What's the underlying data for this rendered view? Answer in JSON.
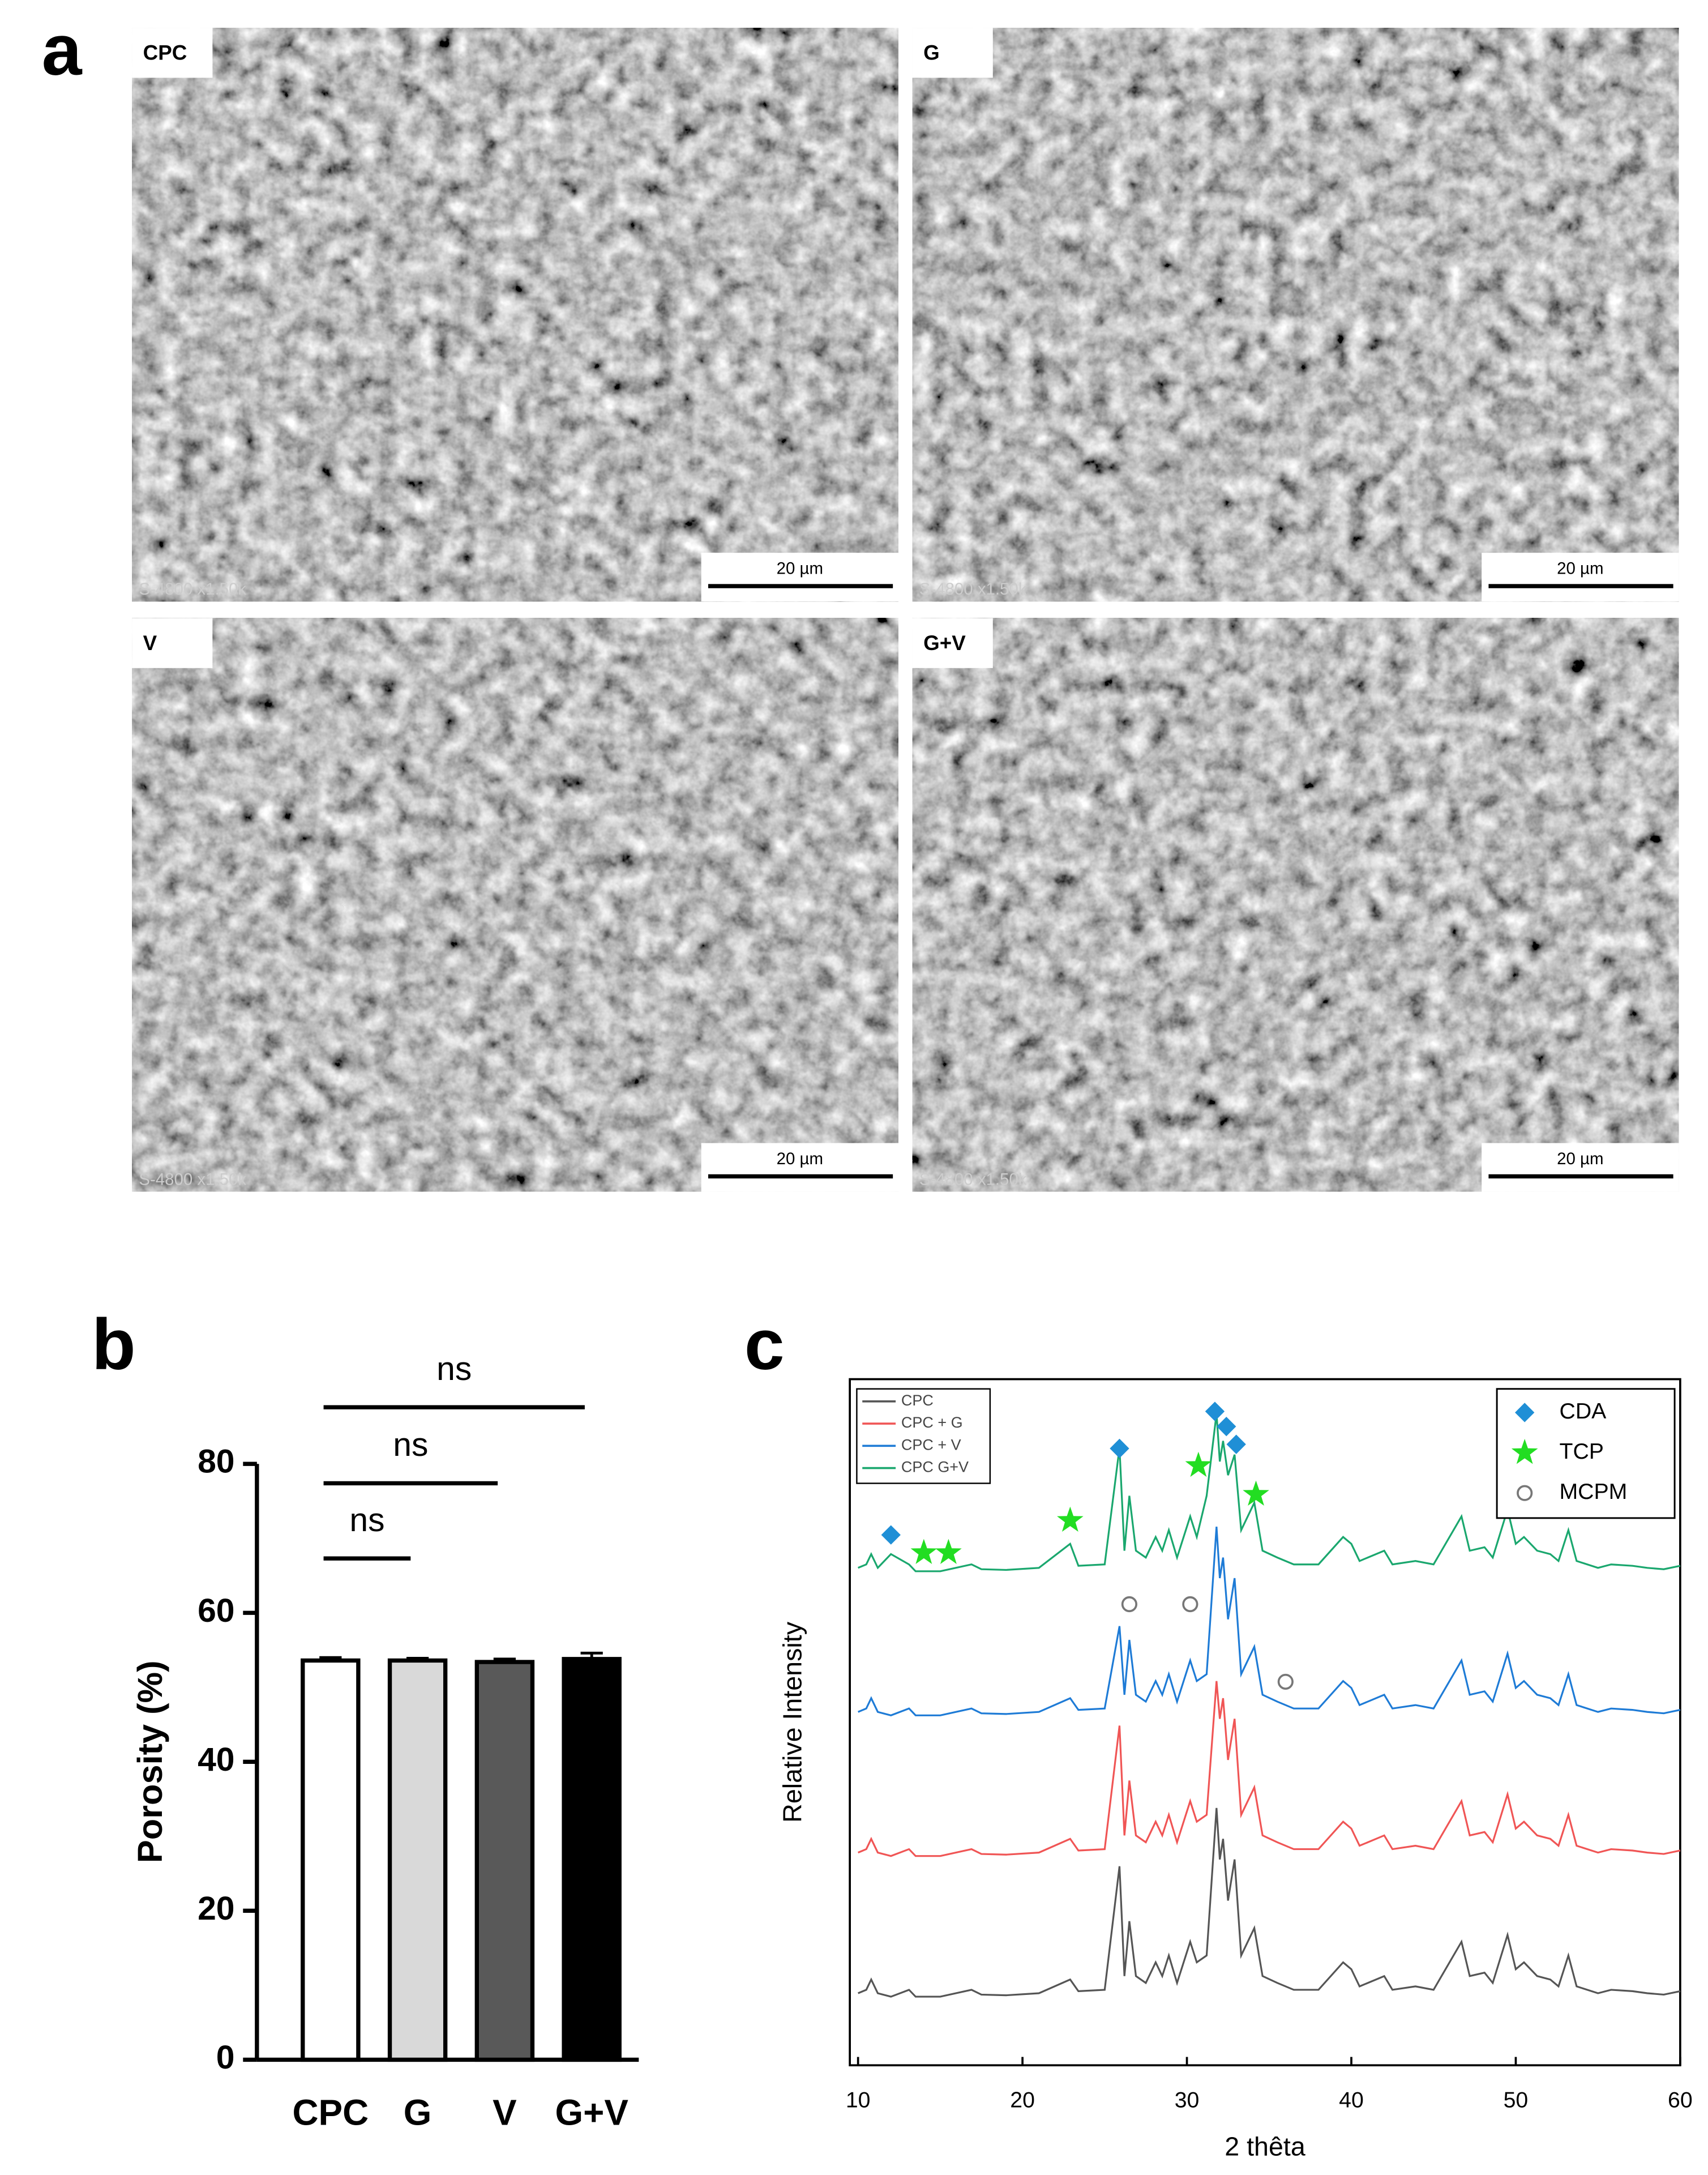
{
  "figure": {
    "panel_labels": [
      "a",
      "b",
      "c"
    ],
    "sem_images": [
      {
        "label": "CPC",
        "scale_bar": "20 µm",
        "info": "S-4800 x1.50k"
      },
      {
        "label": "G",
        "scale_bar": "20 µm",
        "info": "S-4800 x1.50k"
      },
      {
        "label": "V",
        "scale_bar": "20 µm",
        "info": "S-4800 x1.50k"
      },
      {
        "label": "G+V",
        "scale_bar": "20 µm",
        "info": "S-4800 x1.50k"
      }
    ]
  },
  "chart_data": [
    {
      "type": "bar",
      "ylabel": "Porosity (%)",
      "categories": [
        "CPC",
        "G",
        "V",
        "G+V"
      ],
      "values": [
        53.6,
        53.6,
        53.4,
        53.8
      ],
      "error": [
        0.4,
        0.3,
        0.4,
        0.8
      ],
      "colors": [
        "#ffffff",
        "#d9d9d9",
        "#595959",
        "#000000"
      ],
      "ylim": [
        0,
        80
      ],
      "yticks": [
        0,
        20,
        40,
        60,
        80
      ],
      "comparisons": [
        {
          "text": "ns",
          "pair": [
            0,
            1
          ],
          "y": 67.3
        },
        {
          "text": "ns",
          "pair": [
            0,
            2
          ],
          "y": 77.4
        },
        {
          "text": "ns",
          "pair": [
            0,
            3
          ],
          "y": 87.6
        }
      ]
    },
    {
      "type": "line",
      "xlabel": "2 thêta",
      "ylabel": "Relative Intensity",
      "x": [
        10,
        10.5,
        10.8,
        11.2,
        12,
        13.1,
        13.5,
        15,
        16.9,
        17.5,
        19,
        21,
        22.9,
        23.4,
        25,
        25.9,
        26.2,
        26.5,
        26.9,
        27.5,
        28.1,
        28.5,
        28.9,
        29.4,
        30.2,
        30.6,
        31.2,
        31.8,
        32.0,
        32.2,
        32.5,
        32.9,
        33.3,
        34.1,
        34.6,
        35.5,
        36.5,
        38,
        39.5,
        40.0,
        40.5,
        42.0,
        42.5,
        43.9,
        45,
        46.7,
        47.2,
        48.1,
        48.6,
        49.5,
        50.0,
        50.5,
        51.3,
        52.1,
        52.6,
        53.2,
        53.7,
        55,
        55.8,
        57.1,
        58,
        59,
        60
      ],
      "series": [
        {
          "name": "CPC",
          "color": "#555555",
          "values": [
            10.5,
            11,
            12.5,
            10.5,
            10,
            11,
            10,
            10,
            11,
            10.3,
            10.2,
            10.5,
            12.5,
            10.8,
            11,
            29,
            13,
            21,
            13,
            12,
            15,
            13,
            16,
            12,
            18,
            15,
            16,
            37.5,
            30,
            33,
            24,
            30,
            16,
            20,
            13,
            12,
            11,
            11,
            15,
            14,
            11.5,
            13,
            11,
            11.5,
            11,
            18,
            13,
            13.5,
            12,
            19,
            14,
            15,
            13,
            12.5,
            11.5,
            16,
            11.5,
            10.5,
            11,
            10.8,
            10.5,
            10.3,
            10.8
          ]
        },
        {
          "name": "CPC + G",
          "color": "#f05555",
          "values": [
            31,
            31.5,
            33,
            31,
            30.5,
            31.5,
            30.5,
            30.5,
            31.5,
            30.8,
            30.7,
            31,
            33,
            31.3,
            31.5,
            49.5,
            33.5,
            41.5,
            33.5,
            32.5,
            35.5,
            33.5,
            36.5,
            32.5,
            38.5,
            35.5,
            36.5,
            56,
            50.5,
            53.5,
            44.5,
            50.5,
            36.5,
            40.5,
            33.5,
            32.5,
            31.5,
            31.5,
            35.5,
            34.5,
            32,
            33.5,
            31.5,
            32,
            31.5,
            38.5,
            33.5,
            34,
            32.5,
            39.5,
            34.5,
            35.5,
            33.5,
            33,
            32,
            36.5,
            32,
            31,
            31.5,
            31.3,
            31,
            30.8,
            31.3
          ]
        },
        {
          "name": "CPC + V",
          "color": "#1e7bd6",
          "values": [
            51.5,
            52,
            53.5,
            51.5,
            51,
            52,
            51,
            51,
            52,
            51.3,
            51.2,
            51.5,
            53.5,
            51.8,
            52,
            64,
            54,
            62,
            54,
            53,
            56,
            54,
            57,
            53,
            59,
            56,
            57,
            78.5,
            71,
            74,
            65,
            71,
            57,
            61,
            54,
            53,
            52,
            52,
            56,
            55,
            52.5,
            54,
            52,
            52.5,
            52,
            59,
            54,
            54.5,
            53,
            60,
            55,
            56,
            54,
            53.5,
            52.5,
            57,
            52.5,
            51.5,
            52,
            51.8,
            51.5,
            51.3,
            51.8
          ]
        },
        {
          "name": "CPC G+V",
          "color": "#1aa76e",
          "values": [
            72.5,
            73,
            74.5,
            72.5,
            74.5,
            73,
            72,
            72,
            73,
            72.3,
            72.2,
            72.5,
            76,
            72.8,
            73,
            90,
            75,
            83,
            75,
            74,
            77,
            75,
            78,
            74,
            80,
            77,
            83,
            95,
            88,
            91,
            86,
            89,
            78,
            82,
            75,
            74,
            73,
            73,
            77,
            76,
            73.5,
            75,
            73,
            73.5,
            73,
            80,
            75,
            75.5,
            74,
            81,
            76,
            77,
            75,
            74.5,
            73.5,
            78,
            73.5,
            72.5,
            73,
            72.8,
            72.5,
            72.3,
            72.8
          ]
        }
      ],
      "legend_loc": "upper left",
      "markers": [
        {
          "name": "CDA",
          "color": "#1f8fd6",
          "shape": "diamond",
          "x": [
            12,
            25.9,
            31.7,
            32.4,
            33.0
          ],
          "y": [
            77.3,
            89.9,
            95.3,
            93.1,
            90.5
          ]
        },
        {
          "name": "TCP",
          "color": "#22dd22",
          "shape": "star",
          "x": [
            14,
            15.5,
            22.9,
            30.7,
            34.2
          ],
          "y": [
            74.7,
            74.7,
            79.4,
            87.4,
            83.2
          ]
        },
        {
          "name": "MCPM",
          "color": "#777777",
          "shape": "circle",
          "x": [
            26.5,
            30.2,
            36
          ],
          "y": [
            67.2,
            67.2,
            55.9
          ]
        }
      ],
      "markers_legend_loc": "upper right",
      "xlim": [
        9.5,
        60
      ],
      "xticks": [
        10,
        20,
        30,
        40,
        50,
        60
      ],
      "ylim": [
        0,
        100
      ]
    }
  ]
}
